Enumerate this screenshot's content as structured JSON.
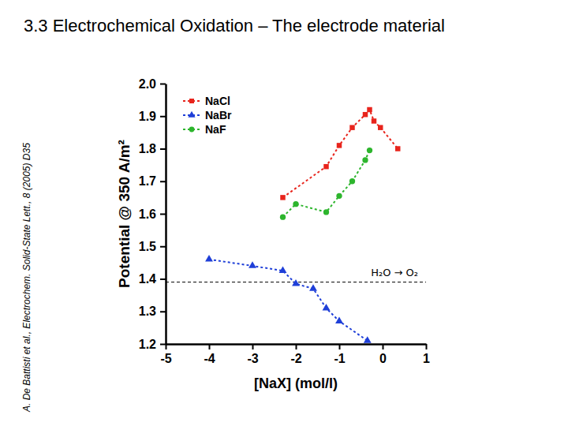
{
  "slide": {
    "title": "3.3 Electrochemical Oxidation – The electrode material",
    "citation": "A. De Battisti et al., Electrochem. Solid-State Lett., 8 (2005) D35"
  },
  "chart_data": {
    "type": "line",
    "x_label": "[NaX] (mol/l)",
    "y_label": "Potential @ 350 A/m²",
    "xlim": [
      -5,
      1
    ],
    "xticks": [
      -5,
      -4,
      -3,
      -2,
      -1,
      0,
      1
    ],
    "ylim": [
      1.2,
      2.0
    ],
    "yticks": [
      1.2,
      1.3,
      1.4,
      1.5,
      1.6,
      1.7,
      1.8,
      1.9,
      {
        "value": 2.0,
        "label": "2.0"
      }
    ],
    "grid": false,
    "legend": "upper left",
    "series": [
      {
        "name": "NaCl",
        "color": "#e8241c",
        "marker": "square",
        "line_style": "dotted",
        "x": [
          -2.3,
          -1.3,
          -1.0,
          -0.7,
          -0.4,
          -0.3,
          -0.2,
          -0.05,
          0.35
        ],
        "values": [
          1.65,
          1.745,
          1.81,
          1.865,
          1.905,
          1.92,
          1.885,
          1.865,
          1.8
        ]
      },
      {
        "name": "NaBr",
        "color": "#1f3fd8",
        "marker": "triangle",
        "line_style": "dotted",
        "x": [
          -4,
          -3,
          -2.3,
          -2,
          -1.6,
          -1.3,
          -1,
          -0.35
        ],
        "values": [
          1.46,
          1.44,
          1.425,
          1.385,
          1.37,
          1.31,
          1.27,
          1.21
        ]
      },
      {
        "name": "NaF",
        "color": "#2db52d",
        "marker": "circle",
        "line_style": "dotted",
        "x": [
          -2.3,
          -2,
          -1.3,
          -1,
          -0.7,
          -0.4,
          -0.3
        ],
        "values": [
          1.59,
          1.63,
          1.605,
          1.655,
          1.7,
          1.765,
          1.795
        ]
      }
    ],
    "reference_line": {
      "value": 1.39,
      "label": "H₂O → O₂"
    }
  }
}
